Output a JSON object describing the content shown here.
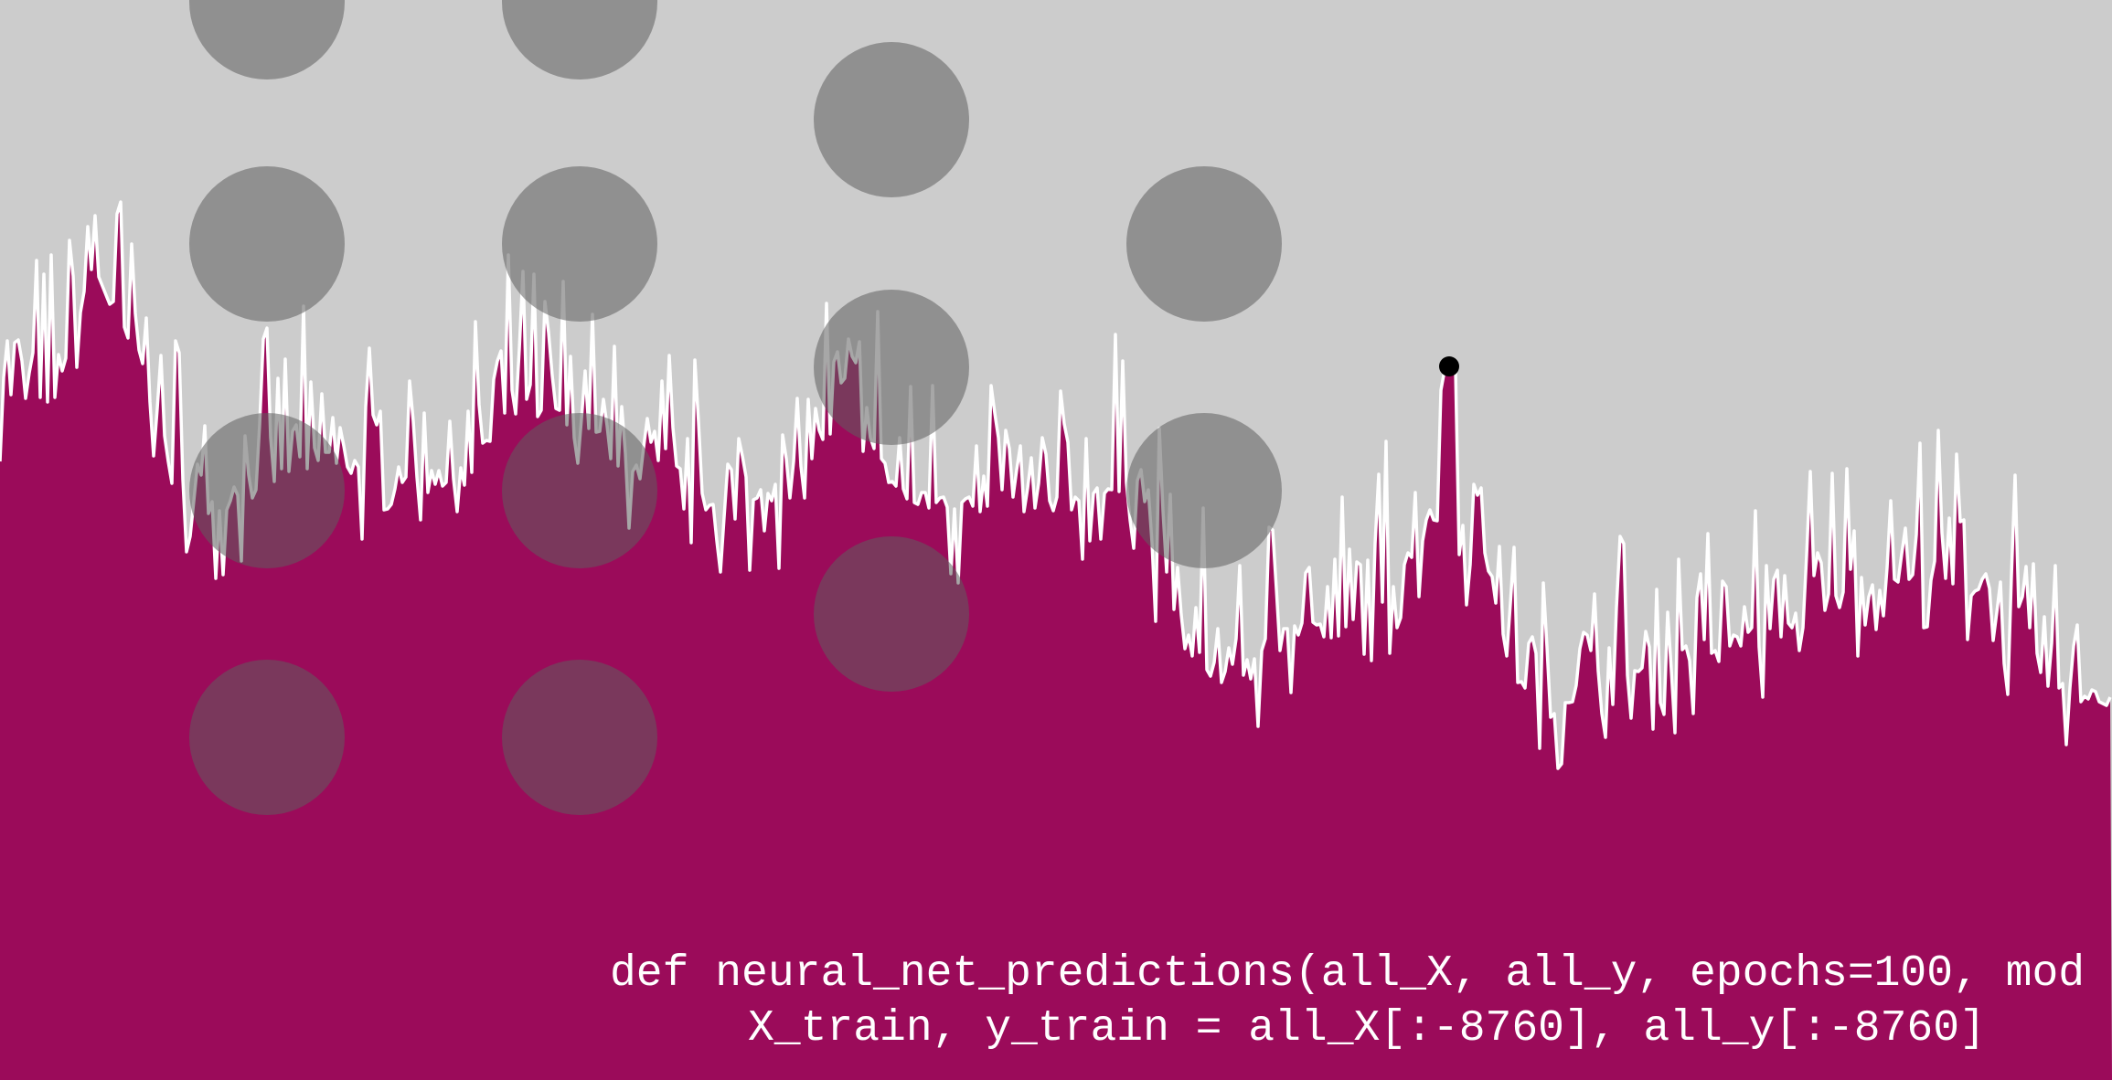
{
  "colors": {
    "background": "#cccccc",
    "area_fill": "#9b0b5a",
    "line": "#ffffff",
    "dot": "#000000",
    "code_text": "#ffffff"
  },
  "code": {
    "line1": "def neural_net_predictions(all_X, all_y, epochs=100, mod",
    "line2": "X_train, y_train = all_X[:-8760], all_y[:-8760]"
  },
  "decorations": {
    "circle_grid": "4 rows of translucent gray circles over the upper-left half"
  }
}
